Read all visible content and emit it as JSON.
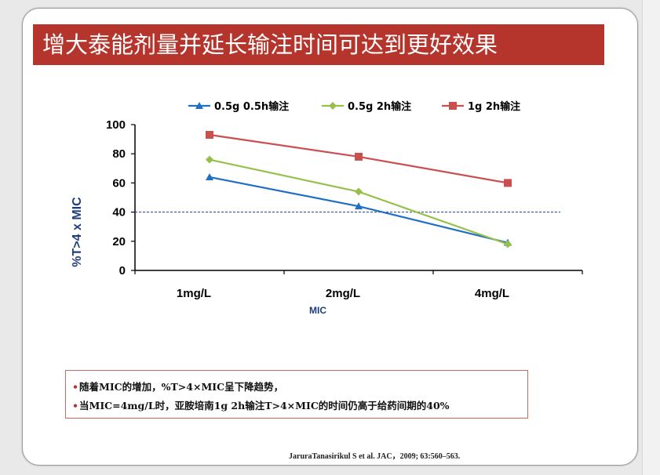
{
  "slide": {
    "title": "增大泰能剂量并延长输注时间可达到更好效果",
    "notes": [
      "随着MIC的增加，%T>4×MIC呈下降趋势，",
      "当MIC=4mg/L时，亚胺培南1g 2h输注T>4×MIC的时间仍高于给药间期的40%"
    ],
    "bullet": "•",
    "citation": "JaruraTanasirikul S et al. JAC，2009; 63:560–563."
  },
  "colors": {
    "title_bg": "#b5352d",
    "series_blue": "#1f6fc4",
    "series_green": "#96c04a",
    "series_red": "#c8504e",
    "threshold_line": "#1f3d8a",
    "axis_title": "#1f3d7a"
  },
  "chart_data": {
    "type": "line",
    "categories": [
      "1mg/L",
      "2mg/L",
      "4mg/L"
    ],
    "series": [
      {
        "name": "0.5g 0.5h输注",
        "values": [
          64,
          44,
          19
        ],
        "marker": "triangle",
        "color": "#1f6fc4"
      },
      {
        "name": "0.5g 2h输注",
        "values": [
          76,
          54,
          18
        ],
        "marker": "diamond",
        "color": "#96c04a"
      },
      {
        "name": "1g 2h输注",
        "values": [
          93,
          78,
          60
        ],
        "marker": "square",
        "color": "#c8504e"
      }
    ],
    "xlabel": "MIC",
    "ylabel": "%T>4 x MIC",
    "ylim": [
      0,
      100
    ],
    "yticks": [
      0,
      20,
      40,
      60,
      80,
      100
    ],
    "reference_line": 40,
    "legend_position": "top",
    "grid": false
  }
}
